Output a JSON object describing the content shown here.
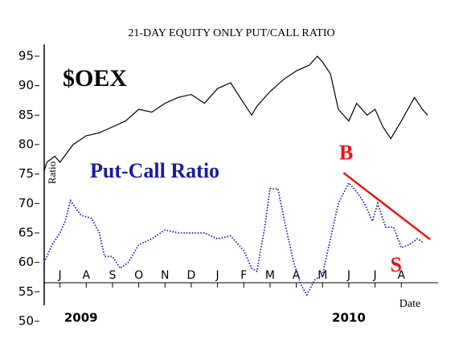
{
  "chart_data": {
    "type": "line",
    "title": "21-DAY EQUITY ONLY PUT/CALL RATIO",
    "y_label": "Ratio",
    "x_label": "Date",
    "xlim": [
      -0.6,
      14.4
    ],
    "xticks": [
      {
        "value": 0,
        "label": "J"
      },
      {
        "value": 1,
        "label": "A"
      },
      {
        "value": 2,
        "label": "S"
      },
      {
        "value": 3,
        "label": "O"
      },
      {
        "value": 4,
        "label": "N"
      },
      {
        "value": 5,
        "label": "D"
      },
      {
        "value": 6,
        "label": "J"
      },
      {
        "value": 7,
        "label": "F"
      },
      {
        "value": 8,
        "label": "M"
      },
      {
        "value": 9,
        "label": "A"
      },
      {
        "value": 10,
        "label": "M"
      },
      {
        "value": 11,
        "label": "J"
      },
      {
        "value": 12,
        "label": "J"
      },
      {
        "value": 13,
        "label": "A"
      }
    ],
    "year_labels": [
      {
        "value": 0.8,
        "label": "2009"
      },
      {
        "value": 11.0,
        "label": "2010"
      }
    ],
    "ylim": [
      50,
      97
    ],
    "yticks": [
      50,
      55,
      60,
      65,
      70,
      75,
      80,
      85,
      90,
      95
    ],
    "series": [
      {
        "name": "$OEX",
        "color": "#000000",
        "style": "solid",
        "x": [
          -0.6,
          -0.5,
          -0.2,
          0,
          0.5,
          1.0,
          1.5,
          2.0,
          2.5,
          3.0,
          3.5,
          4.0,
          4.5,
          5.0,
          5.5,
          6.0,
          6.5,
          7.0,
          7.3,
          7.5,
          8.0,
          8.5,
          9.0,
          9.5,
          9.8,
          10.0,
          10.3,
          10.6,
          11.0,
          11.3,
          11.7,
          12.0,
          12.3,
          12.6,
          13.0,
          13.5,
          13.8,
          14.0
        ],
        "values": [
          75.5,
          77,
          78,
          77,
          80,
          81.5,
          82,
          83,
          84,
          86,
          85.5,
          87,
          88,
          88.5,
          87,
          89.5,
          90.5,
          87,
          85,
          86.5,
          89,
          91,
          92.5,
          93.5,
          95,
          94,
          92,
          86,
          84,
          87,
          85,
          86,
          83,
          81,
          84,
          88,
          86,
          85
        ]
      },
      {
        "name": "Put-Call Ratio",
        "color": "#1a1aa8",
        "style": "dotted",
        "x": [
          -0.6,
          -0.3,
          0,
          0.2,
          0.4,
          0.8,
          1.2,
          1.5,
          1.7,
          2.0,
          2.3,
          2.6,
          3.0,
          3.5,
          4.0,
          4.5,
          5.0,
          5.5,
          6.0,
          6.5,
          7.0,
          7.3,
          7.5,
          7.8,
          8.0,
          8.3,
          8.6,
          8.9,
          9.2,
          9.4,
          9.7,
          10.0,
          10.3,
          10.6,
          11.0,
          11.3,
          11.6,
          11.9,
          12.1,
          12.4,
          12.7,
          13.0,
          13.3,
          13.6,
          13.8
        ],
        "values": [
          60,
          63,
          65,
          67,
          70.5,
          68,
          67.5,
          65,
          61,
          61,
          59,
          60,
          63,
          64,
          65.5,
          65,
          65,
          65,
          64,
          64.5,
          62,
          59,
          58.5,
          66,
          72.5,
          72.5,
          66,
          60,
          56,
          54.5,
          57,
          58,
          64,
          70,
          73.5,
          72,
          70,
          67,
          70,
          66,
          66,
          62.5,
          63,
          64,
          63.5
        ]
      }
    ],
    "trendline": {
      "color": "#ee1111",
      "x": [
        10.8,
        14.1
      ],
      "values": [
        75.2,
        63.9
      ]
    },
    "annotations": [
      {
        "text": "B",
        "color": "#ee1111",
        "x": 10.9,
        "y": 78.3
      },
      {
        "text": "S",
        "color": "#ee1111",
        "x": 12.8,
        "y": 59.3
      }
    ]
  }
}
